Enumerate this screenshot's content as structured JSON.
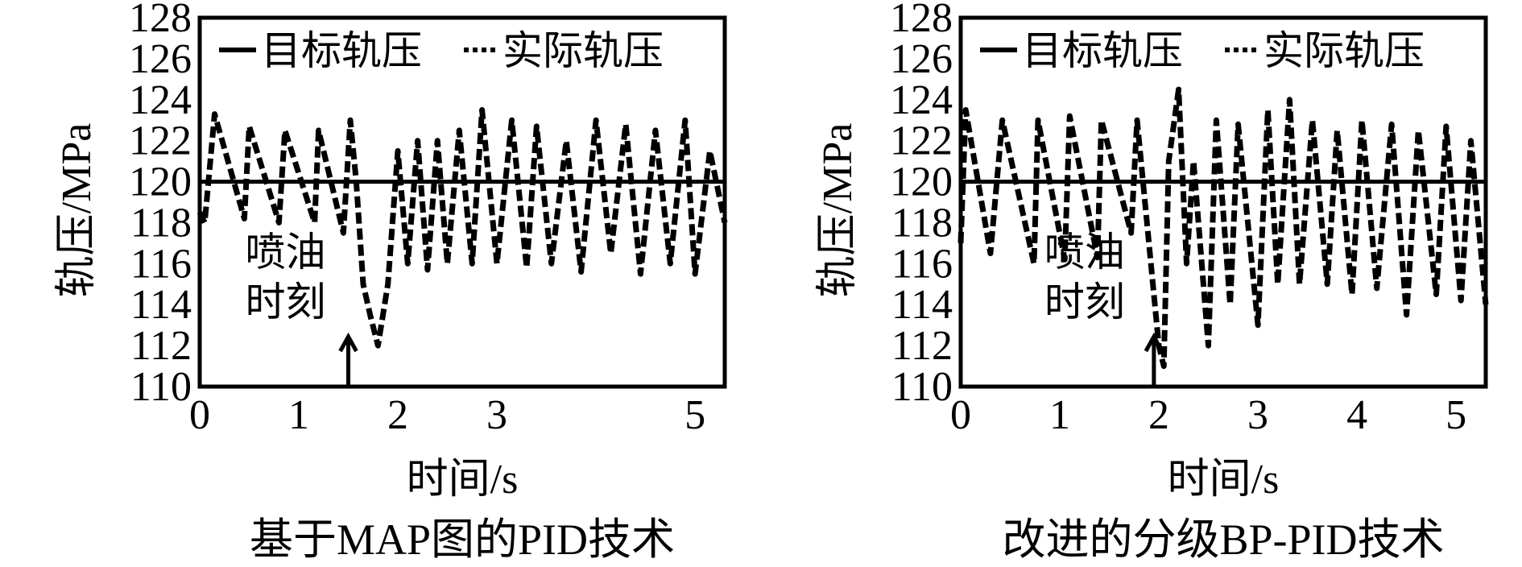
{
  "chart_data": [
    {
      "type": "line",
      "caption": "基于MAP图的PID技术",
      "xlabel": "时间/s",
      "ylabel": "轨压/MPa",
      "xlim": [
        0,
        5.3
      ],
      "ylim": [
        110,
        128
      ],
      "x_ticks": [
        "0",
        "1",
        "2",
        "3",
        "5"
      ],
      "x_tick_values": [
        0,
        1,
        2,
        3,
        5
      ],
      "y_ticks": [
        "110",
        "112",
        "114",
        "116",
        "118",
        "120",
        "122",
        "124",
        "126",
        "128"
      ],
      "legend_position": "top",
      "annotation": {
        "line1": "喷油",
        "line2": "时刻",
        "x": 1.5
      },
      "series": [
        {
          "name": "目标轨压",
          "style": "solid",
          "color": "#000000",
          "x": [
            0,
            5.3
          ],
          "y": [
            120,
            120
          ]
        },
        {
          "name": "实际轨压",
          "style": "dashed",
          "color": "#000000",
          "x": [
            0,
            0.05,
            0.15,
            0.45,
            0.5,
            0.8,
            0.86,
            1.16,
            1.2,
            1.45,
            1.52,
            1.58,
            1.65,
            1.72,
            1.8,
            1.9,
            2.0,
            2.1,
            2.2,
            2.3,
            2.4,
            2.5,
            2.62,
            2.75,
            2.85,
            3.0,
            3.15,
            3.3,
            3.4,
            3.55,
            3.7,
            3.85,
            4.0,
            4.15,
            4.3,
            4.45,
            4.6,
            4.75,
            4.9,
            5.0,
            5.15,
            5.3
          ],
          "y": [
            118.5,
            118,
            123.3,
            118.2,
            122.7,
            118,
            122.5,
            118,
            122.5,
            117.5,
            123,
            120,
            115,
            113.5,
            112,
            115,
            121.5,
            116,
            122,
            115.7,
            122,
            116,
            122.5,
            116,
            123.5,
            116,
            123,
            115.8,
            122.7,
            116,
            122,
            115.6,
            123,
            116.5,
            122.8,
            115.5,
            122.5,
            116,
            123,
            115.5,
            121.5,
            118
          ]
        }
      ]
    },
    {
      "type": "line",
      "caption": "改进的分级BP-PID技术",
      "xlabel": "时间/s",
      "ylabel": "轨压/MPa",
      "xlim": [
        0,
        5.3
      ],
      "ylim": [
        110,
        128
      ],
      "x_ticks": [
        "0",
        "1",
        "2",
        "3",
        "4",
        "5"
      ],
      "x_tick_values": [
        0,
        1,
        2,
        3,
        4,
        5
      ],
      "y_ticks": [
        "110",
        "112",
        "114",
        "116",
        "118",
        "120",
        "122",
        "124",
        "126",
        "128"
      ],
      "legend_position": "top",
      "annotation": {
        "line1": "喷油",
        "line2": "时刻",
        "x": 1.95
      },
      "series": [
        {
          "name": "目标轨压",
          "style": "solid",
          "color": "#000000",
          "x": [
            0,
            5.3
          ],
          "y": [
            120,
            120
          ]
        },
        {
          "name": "实际轨压",
          "style": "dashed",
          "color": "#000000",
          "x": [
            0,
            0.05,
            0.3,
            0.42,
            0.74,
            0.78,
            1.05,
            1.1,
            1.38,
            1.42,
            1.72,
            1.78,
            2.0,
            2.05,
            2.1,
            2.2,
            2.28,
            2.35,
            2.5,
            2.58,
            2.72,
            2.8,
            3.0,
            3.1,
            3.2,
            3.32,
            3.42,
            3.55,
            3.7,
            3.8,
            3.95,
            4.05,
            4.2,
            4.35,
            4.5,
            4.62,
            4.8,
            4.9,
            5.05,
            5.15,
            5.3
          ],
          "y": [
            117,
            123.5,
            116.5,
            123,
            116,
            123,
            116.2,
            123.2,
            116.3,
            123,
            117.5,
            123,
            112,
            111,
            121,
            124.5,
            116,
            121,
            112,
            123,
            114,
            122.8,
            113,
            123.5,
            115,
            124,
            115,
            123,
            115,
            122.5,
            114.5,
            123,
            114.8,
            122.8,
            113.5,
            122.5,
            114.5,
            122.7,
            114.2,
            122,
            114
          ]
        }
      ]
    }
  ]
}
